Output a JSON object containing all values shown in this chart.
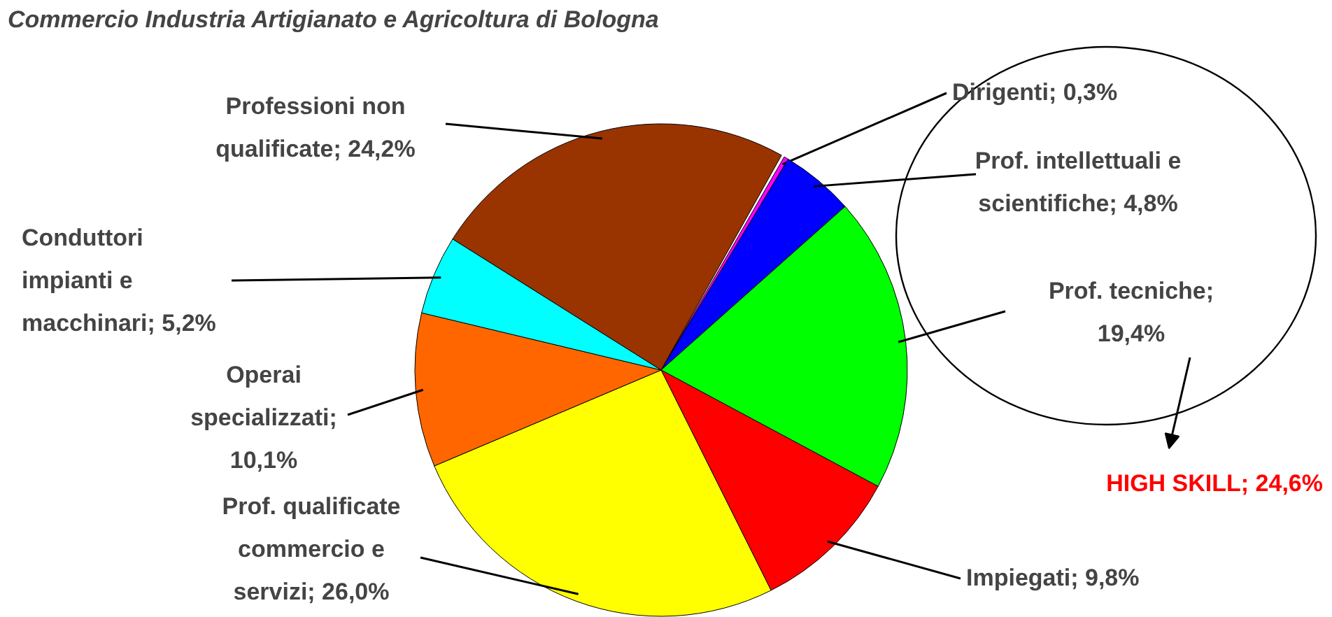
{
  "chart_data": {
    "type": "pie",
    "title": "Commercio Industria Artigianato e Agricoltura di Bologna",
    "categories": [
      "Dirigenti; 0,3%",
      "Prof. intellettuali e scientifiche; 4,8%",
      "Prof. tecniche; 19,4%",
      "Impiegati; 9,8%",
      "Prof. qualificate commercio e servizi; 26,0%",
      "Operai specializzati; 10,1%",
      "Conduttori impianti e macchinari; 5,2%",
      "Professioni non qualificate; 24,2%"
    ],
    "values": [
      0.3,
      4.8,
      19.4,
      9.8,
      26.0,
      10.1,
      5.2,
      24.2
    ],
    "colors": [
      "#ff00ff",
      "#0000ff",
      "#00ff00",
      "#ff0000",
      "#ffff00",
      "#ff6600",
      "#00ffff",
      "#993300"
    ],
    "annotations": [
      "HIGH SKILL; 24,6%"
    ]
  }
}
